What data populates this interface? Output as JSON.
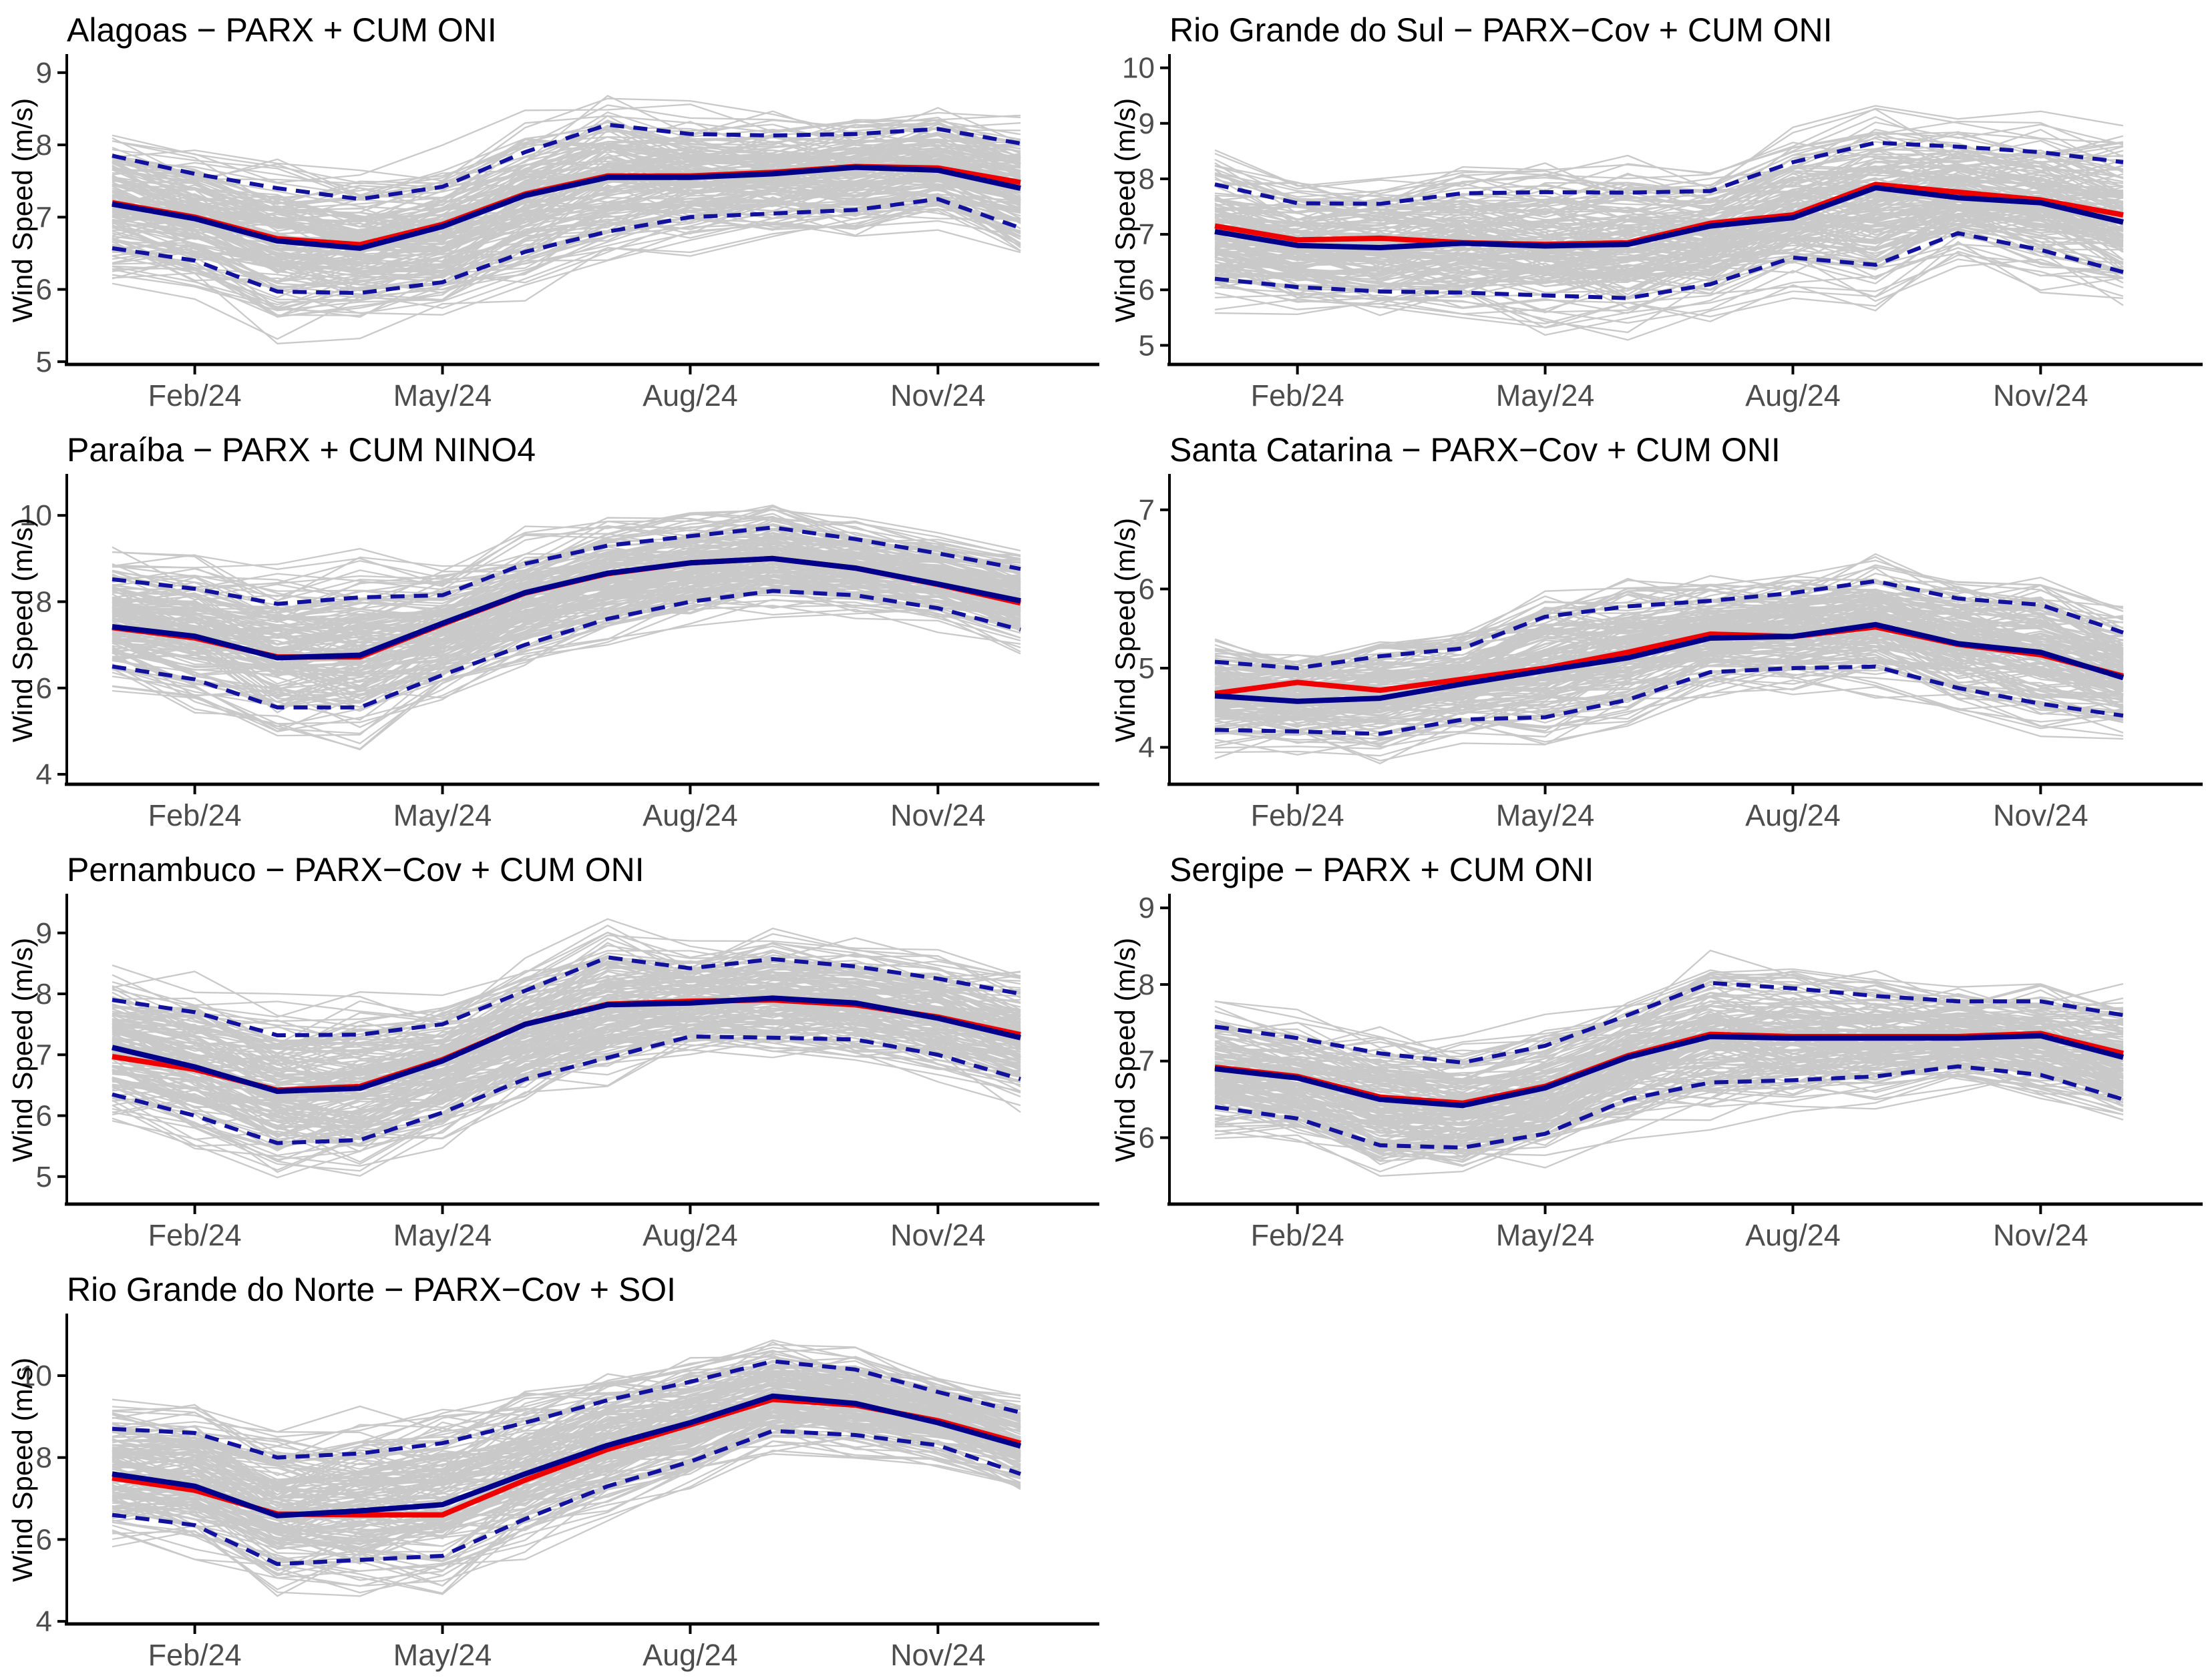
{
  "figure": {
    "layout": "4 rows x 2 columns, 7 panels",
    "background": "#FFFFFF"
  },
  "colors": {
    "ensemble": "#C9C9C9",
    "forecast_red": "#EE0000",
    "forecast_blue": "#00008B",
    "prediction_interval": "#11119E",
    "axis_line": "#000000",
    "tick_label": "#4D4D4D",
    "title_text": "#000000"
  },
  "chart_data": [
    {
      "type": "line",
      "title": "Alagoas − PARX + CUM ONI",
      "ylabel": "Wind Speed (m/s)",
      "x": [
        "Jan/24",
        "Feb/24",
        "Mar/24",
        "Apr/24",
        "May/24",
        "Jun/24",
        "Jul/24",
        "Aug/24",
        "Sep/24",
        "Oct/24",
        "Nov/24",
        "Dec/24"
      ],
      "x_tick_labels": [
        "Feb/24",
        "May/24",
        "Aug/24",
        "Nov/24"
      ],
      "x_tick_idx": [
        1,
        4,
        7,
        10
      ],
      "y_ticks": [
        5,
        6,
        7,
        8,
        9
      ],
      "ylim": [
        4.98,
        9.22
      ],
      "grid": {
        "row": 0,
        "col": 0
      },
      "legend": "none",
      "series": {
        "ensemble": {
          "name": "ensemble-members",
          "n": 160,
          "seed": 11,
          "spread_mult": 1.6,
          "noise_mult": 0.45
        },
        "red": {
          "name": "forecast-red",
          "values": [
            7.2,
            7.0,
            6.7,
            6.62,
            6.9,
            7.32,
            7.57,
            7.57,
            7.62,
            7.7,
            7.68,
            7.48
          ]
        },
        "blue": {
          "name": "forecast-blue",
          "values": [
            7.18,
            6.98,
            6.67,
            6.57,
            6.87,
            7.3,
            7.55,
            7.55,
            7.6,
            7.69,
            7.65,
            7.4
          ]
        },
        "upper": {
          "name": "upper-prediction-interval",
          "style": "dashed",
          "values": [
            7.85,
            7.6,
            7.4,
            7.25,
            7.42,
            7.9,
            8.28,
            8.15,
            8.13,
            8.15,
            8.22,
            8.02
          ]
        },
        "lower": {
          "name": "lower-prediction-interval",
          "style": "dashed",
          "values": [
            6.57,
            6.4,
            5.97,
            5.95,
            6.1,
            6.52,
            6.8,
            7.0,
            7.05,
            7.1,
            7.25,
            6.85
          ]
        }
      }
    },
    {
      "type": "line",
      "title": "Rio Grande do Sul − PARX−Cov + CUM ONI",
      "ylabel": "Wind Speed (m/s)",
      "x": [
        "Jan/24",
        "Feb/24",
        "Mar/24",
        "Apr/24",
        "May/24",
        "Jun/24",
        "Jul/24",
        "Aug/24",
        "Sep/24",
        "Oct/24",
        "Nov/24",
        "Dec/24"
      ],
      "x_tick_labels": [
        "Feb/24",
        "May/24",
        "Aug/24",
        "Nov/24"
      ],
      "x_tick_idx": [
        1,
        4,
        7,
        10
      ],
      "y_ticks": [
        5,
        6,
        7,
        8,
        9,
        10
      ],
      "ylim": [
        4.68,
        10.2
      ],
      "grid": {
        "row": 0,
        "col": 1
      },
      "legend": "none",
      "series": {
        "ensemble": {
          "name": "ensemble-members",
          "n": 160,
          "seed": 22,
          "spread_mult": 1.6,
          "noise_mult": 0.45
        },
        "red": {
          "name": "forecast-red",
          "values": [
            7.15,
            6.9,
            6.93,
            6.85,
            6.82,
            6.85,
            7.2,
            7.35,
            7.9,
            7.76,
            7.62,
            7.35
          ]
        },
        "blue": {
          "name": "forecast-blue",
          "values": [
            7.05,
            6.8,
            6.76,
            6.84,
            6.79,
            6.82,
            7.15,
            7.3,
            7.84,
            7.66,
            7.57,
            7.22
          ]
        },
        "upper": {
          "name": "upper-prediction-interval",
          "style": "dashed",
          "values": [
            7.9,
            7.56,
            7.55,
            7.74,
            7.76,
            7.75,
            7.78,
            8.3,
            8.65,
            8.58,
            8.48,
            8.3
          ]
        },
        "lower": {
          "name": "lower-prediction-interval",
          "style": "dashed",
          "values": [
            6.2,
            6.05,
            5.97,
            5.95,
            5.9,
            5.85,
            6.1,
            6.58,
            6.45,
            7.02,
            6.72,
            6.32
          ]
        }
      }
    },
    {
      "type": "line",
      "title": "Paraíba − PARX + CUM NINO4",
      "ylabel": "Wind Speed (m/s)",
      "x": [
        "Jan/24",
        "Feb/24",
        "Mar/24",
        "Apr/24",
        "May/24",
        "Jun/24",
        "Jul/24",
        "Aug/24",
        "Sep/24",
        "Oct/24",
        "Nov/24",
        "Dec/24"
      ],
      "x_tick_labels": [
        "Feb/24",
        "May/24",
        "Aug/24",
        "Nov/24"
      ],
      "x_tick_idx": [
        1,
        4,
        7,
        10
      ],
      "y_ticks": [
        4,
        6,
        8,
        10
      ],
      "ylim": [
        3.8,
        10.9
      ],
      "grid": {
        "row": 1,
        "col": 0
      },
      "legend": "none",
      "series": {
        "ensemble": {
          "name": "ensemble-members",
          "n": 160,
          "seed": 33,
          "spread_mult": 1.6,
          "noise_mult": 0.45
        },
        "red": {
          "name": "forecast-red",
          "values": [
            7.4,
            7.16,
            6.72,
            6.72,
            7.48,
            8.2,
            8.65,
            8.9,
            9.0,
            8.78,
            8.4,
            7.97
          ]
        },
        "blue": {
          "name": "forecast-blue",
          "values": [
            7.42,
            7.2,
            6.7,
            6.76,
            7.5,
            8.21,
            8.66,
            8.9,
            9.0,
            8.78,
            8.41,
            8.02
          ]
        },
        "upper": {
          "name": "upper-prediction-interval",
          "style": "dashed",
          "values": [
            8.52,
            8.3,
            7.95,
            8.1,
            8.15,
            8.88,
            9.3,
            9.52,
            9.72,
            9.45,
            9.12,
            8.76
          ]
        },
        "lower": {
          "name": "lower-prediction-interval",
          "style": "dashed",
          "values": [
            6.5,
            6.2,
            5.55,
            5.55,
            6.3,
            7.0,
            7.6,
            8.0,
            8.25,
            8.15,
            7.85,
            7.35
          ]
        }
      }
    },
    {
      "type": "line",
      "title": "Santa Catarina − PARX−Cov + CUM ONI",
      "ylabel": "Wind Speed (m/s)",
      "x": [
        "Jan/24",
        "Feb/24",
        "Mar/24",
        "Apr/24",
        "May/24",
        "Jun/24",
        "Jul/24",
        "Aug/24",
        "Sep/24",
        "Oct/24",
        "Nov/24",
        "Dec/24"
      ],
      "x_tick_labels": [
        "Feb/24",
        "May/24",
        "Aug/24",
        "Nov/24"
      ],
      "x_tick_idx": [
        1,
        4,
        7,
        10
      ],
      "y_ticks": [
        4,
        5,
        6,
        7
      ],
      "ylim": [
        3.55,
        7.42
      ],
      "grid": {
        "row": 1,
        "col": 1
      },
      "legend": "none",
      "series": {
        "ensemble": {
          "name": "ensemble-members",
          "n": 160,
          "seed": 44,
          "spread_mult": 1.6,
          "noise_mult": 0.45
        },
        "red": {
          "name": "forecast-red",
          "values": [
            4.68,
            4.82,
            4.72,
            4.86,
            5.0,
            5.2,
            5.43,
            5.4,
            5.52,
            5.3,
            5.17,
            4.9
          ]
        },
        "blue": {
          "name": "forecast-blue",
          "values": [
            4.65,
            4.58,
            4.62,
            4.8,
            4.97,
            5.13,
            5.38,
            5.4,
            5.55,
            5.31,
            5.2,
            4.88
          ]
        },
        "upper": {
          "name": "upper-prediction-interval",
          "style": "dashed",
          "values": [
            5.08,
            5.0,
            5.15,
            5.25,
            5.65,
            5.78,
            5.85,
            5.95,
            6.1,
            5.88,
            5.8,
            5.45
          ]
        },
        "lower": {
          "name": "lower-prediction-interval",
          "style": "dashed",
          "values": [
            4.22,
            4.2,
            4.17,
            4.35,
            4.38,
            4.6,
            4.95,
            5.0,
            5.02,
            4.75,
            4.55,
            4.4
          ]
        }
      }
    },
    {
      "type": "line",
      "title": "Pernambuco − PARX−Cov + CUM ONI",
      "ylabel": "Wind Speed (m/s)",
      "x": [
        "Jan/24",
        "Feb/24",
        "Mar/24",
        "Apr/24",
        "May/24",
        "Jun/24",
        "Jul/24",
        "Aug/24",
        "Sep/24",
        "Oct/24",
        "Nov/24",
        "Dec/24"
      ],
      "x_tick_labels": [
        "Feb/24",
        "May/24",
        "Aug/24",
        "Nov/24"
      ],
      "x_tick_idx": [
        1,
        4,
        7,
        10
      ],
      "y_ticks": [
        5,
        6,
        7,
        8,
        9
      ],
      "ylim": [
        4.57,
        9.6
      ],
      "grid": {
        "row": 2,
        "col": 0
      },
      "legend": "none",
      "series": {
        "ensemble": {
          "name": "ensemble-members",
          "n": 160,
          "seed": 55,
          "spread_mult": 1.6,
          "noise_mult": 0.45
        },
        "red": {
          "name": "forecast-red",
          "values": [
            6.97,
            6.76,
            6.42,
            6.48,
            6.92,
            7.5,
            7.83,
            7.88,
            7.9,
            7.82,
            7.62,
            7.33
          ]
        },
        "blue": {
          "name": "forecast-blue",
          "values": [
            7.12,
            6.8,
            6.4,
            6.45,
            6.9,
            7.5,
            7.82,
            7.85,
            7.93,
            7.85,
            7.6,
            7.28
          ]
        },
        "upper": {
          "name": "upper-prediction-interval",
          "style": "dashed",
          "values": [
            7.9,
            7.7,
            7.32,
            7.33,
            7.5,
            8.05,
            8.6,
            8.42,
            8.57,
            8.45,
            8.25,
            8.0
          ]
        },
        "lower": {
          "name": "lower-prediction-interval",
          "style": "dashed",
          "values": [
            6.35,
            6.0,
            5.55,
            5.6,
            6.05,
            6.6,
            6.95,
            7.3,
            7.28,
            7.25,
            7.0,
            6.6
          ]
        }
      }
    },
    {
      "type": "line",
      "title": "Sergipe − PARX + CUM ONI",
      "ylabel": "Wind Speed (m/s)",
      "x": [
        "Jan/24",
        "Feb/24",
        "Mar/24",
        "Apr/24",
        "May/24",
        "Jun/24",
        "Jul/24",
        "Aug/24",
        "Sep/24",
        "Oct/24",
        "Nov/24",
        "Dec/24"
      ],
      "x_tick_labels": [
        "Feb/24",
        "May/24",
        "Aug/24",
        "Nov/24"
      ],
      "x_tick_idx": [
        1,
        4,
        7,
        10
      ],
      "y_ticks": [
        6,
        7,
        8,
        9
      ],
      "ylim": [
        5.15,
        9.15
      ],
      "grid": {
        "row": 2,
        "col": 1
      },
      "legend": "none",
      "series": {
        "ensemble": {
          "name": "ensemble-members",
          "n": 160,
          "seed": 66,
          "spread_mult": 1.6,
          "noise_mult": 0.45
        },
        "red": {
          "name": "forecast-red",
          "values": [
            6.92,
            6.8,
            6.53,
            6.45,
            6.67,
            7.07,
            7.35,
            7.32,
            7.32,
            7.32,
            7.36,
            7.1
          ]
        },
        "blue": {
          "name": "forecast-blue",
          "values": [
            6.9,
            6.78,
            6.5,
            6.42,
            6.65,
            7.05,
            7.32,
            7.3,
            7.3,
            7.3,
            7.33,
            7.05
          ]
        },
        "upper": {
          "name": "upper-prediction-interval",
          "style": "dashed",
          "values": [
            7.45,
            7.3,
            7.1,
            6.98,
            7.2,
            7.6,
            8.02,
            7.95,
            7.85,
            7.78,
            7.78,
            7.6
          ]
        },
        "lower": {
          "name": "lower-prediction-interval",
          "style": "dashed",
          "values": [
            6.4,
            6.25,
            5.9,
            5.87,
            6.05,
            6.5,
            6.72,
            6.75,
            6.8,
            6.93,
            6.82,
            6.5
          ]
        }
      }
    },
    {
      "type": "line",
      "title": "Rio Grande do Norte − PARX−Cov + SOI",
      "ylabel": "Wind Speed (m/s)",
      "x": [
        "Jan/24",
        "Feb/24",
        "Mar/24",
        "Apr/24",
        "May/24",
        "Jun/24",
        "Jul/24",
        "Aug/24",
        "Sep/24",
        "Oct/24",
        "Nov/24",
        "Dec/24"
      ],
      "x_tick_labels": [
        "Feb/24",
        "May/24",
        "Aug/24",
        "Nov/24"
      ],
      "x_tick_idx": [
        1,
        4,
        7,
        10
      ],
      "y_ticks": [
        4,
        6,
        8,
        10
      ],
      "ylim": [
        3.97,
        11.45
      ],
      "grid": {
        "row": 3,
        "col": 0
      },
      "legend": "none",
      "series": {
        "ensemble": {
          "name": "ensemble-members",
          "n": 160,
          "seed": 77,
          "spread_mult": 1.6,
          "noise_mult": 0.45
        },
        "red": {
          "name": "forecast-red",
          "values": [
            7.5,
            7.2,
            6.62,
            6.6,
            6.6,
            7.45,
            8.2,
            8.8,
            9.42,
            9.28,
            8.9,
            8.35
          ]
        },
        "blue": {
          "name": "forecast-blue",
          "values": [
            7.6,
            7.3,
            6.58,
            6.7,
            6.85,
            7.6,
            8.3,
            8.85,
            9.5,
            9.32,
            8.85,
            8.28
          ]
        },
        "upper": {
          "name": "upper-prediction-interval",
          "style": "dashed",
          "values": [
            8.7,
            8.6,
            8.0,
            8.1,
            8.35,
            8.85,
            9.4,
            9.85,
            10.35,
            10.15,
            9.6,
            9.1
          ]
        },
        "lower": {
          "name": "lower-prediction-interval",
          "style": "dashed",
          "values": [
            6.6,
            6.35,
            5.4,
            5.5,
            5.6,
            6.5,
            7.3,
            7.9,
            8.65,
            8.55,
            8.3,
            7.6
          ]
        }
      }
    }
  ]
}
